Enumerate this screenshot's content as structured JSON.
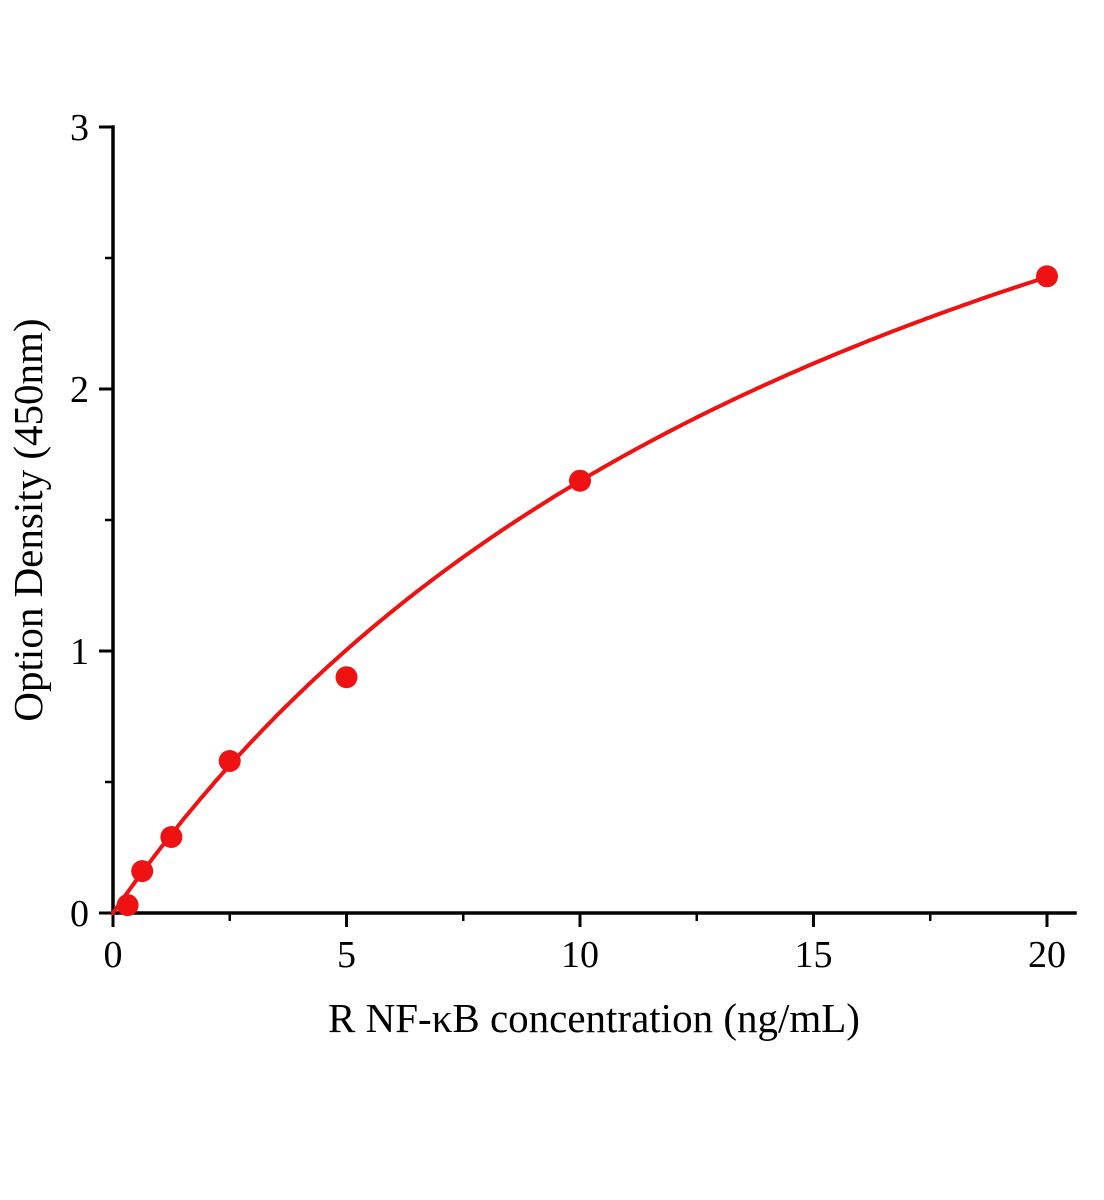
{
  "chart_data": {
    "type": "scatter",
    "title": "",
    "xlabel": "R NF-κB concentration (ng/mL)",
    "ylabel": "Option Density (450nm)",
    "x": [
      0.3125,
      0.625,
      1.25,
      2.5,
      5,
      10,
      20
    ],
    "y": [
      0.03,
      0.16,
      0.29,
      0.58,
      0.9,
      1.65,
      2.43
    ],
    "xlim": [
      0,
      20.6
    ],
    "ylim": [
      0,
      3
    ],
    "x_major_ticks": [
      0,
      5,
      10,
      15,
      20
    ],
    "x_minor_step": 2.5,
    "y_major_ticks": [
      0,
      1,
      2,
      3
    ],
    "y_minor_step": 0.5,
    "fit": {
      "model": "y = a*x/(b+x)",
      "a": 4.6,
      "b": 17.9
    },
    "series_color": "#ee1212",
    "axis_color": "#000000",
    "grid": false,
    "legend": false
  }
}
